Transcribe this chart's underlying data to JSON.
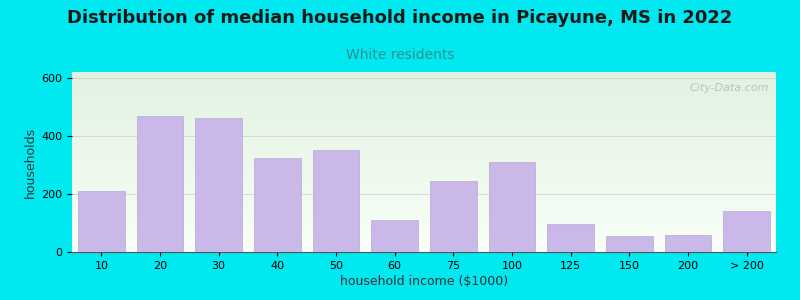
{
  "title": "Distribution of median household income in Picayune, MS in 2022",
  "subtitle": "White residents",
  "xlabel": "household income ($1000)",
  "ylabel": "households",
  "bar_labels": [
    "10",
    "20",
    "30",
    "40",
    "50",
    "60",
    "75",
    "100",
    "125",
    "150",
    "200",
    "> 200"
  ],
  "bar_values": [
    210,
    470,
    460,
    325,
    350,
    110,
    245,
    310,
    95,
    55,
    60,
    140
  ],
  "bar_color": "#c9b8e8",
  "bar_edge_color": "#b8a8d8",
  "background_color": "#00e8f0",
  "plot_bg_color_top": "#e2f2e2",
  "plot_bg_color_bottom": "#f8fff8",
  "ylim": [
    0,
    620
  ],
  "yticks": [
    0,
    200,
    400,
    600
  ],
  "title_fontsize": 13,
  "subtitle_fontsize": 10,
  "subtitle_color": "#2d9090",
  "axis_label_fontsize": 9,
  "tick_label_fontsize": 8,
  "watermark_text": "City-Data.com",
  "watermark_color": "#b0b8c0"
}
